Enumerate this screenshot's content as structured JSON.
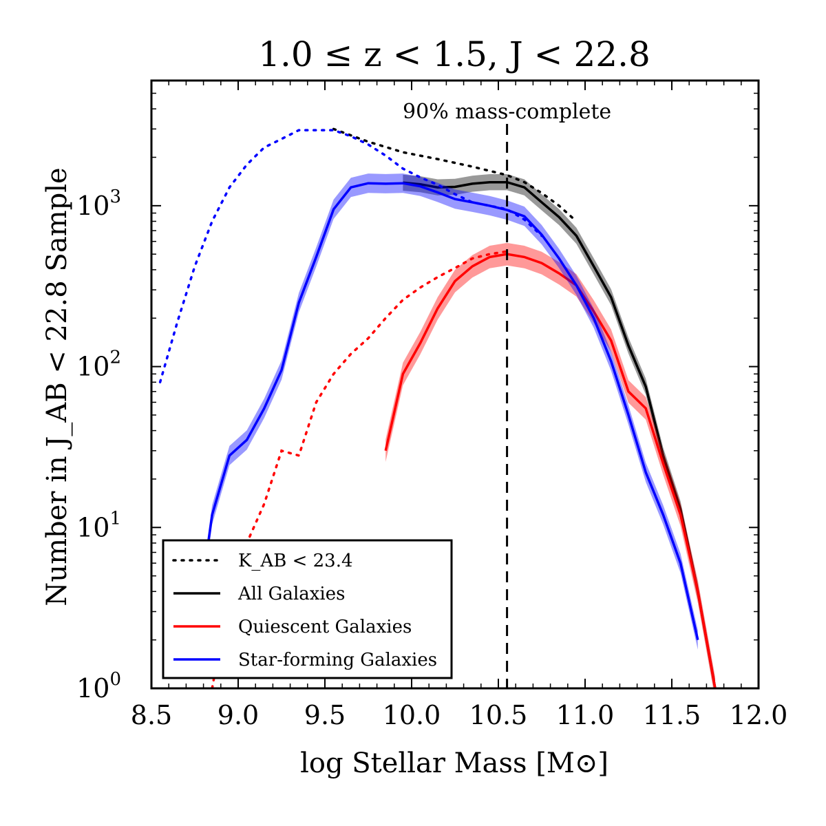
{
  "chart_data": {
    "type": "line",
    "title": "1.0 ≤ z < 1.5, J < 22.8",
    "xlabel": "log Stellar Mass [M⊙]",
    "ylabel": "Number in J_AB < 22.8 Sample",
    "xlim": [
      8.5,
      12.0
    ],
    "ylim": [
      1,
      6000
    ],
    "yscale": "log",
    "grid": false,
    "legend_position": "bottom-left",
    "xticks": [
      "8.5",
      "9.0",
      "9.5",
      "10.0",
      "10.5",
      "11.0",
      "11.5",
      "12.0"
    ],
    "yticks": [
      {
        "base": "10",
        "exp": "0",
        "value": 1
      },
      {
        "base": "10",
        "exp": "1",
        "value": 10
      },
      {
        "base": "10",
        "exp": "2",
        "value": 100
      },
      {
        "base": "10",
        "exp": "3",
        "value": 1000
      }
    ],
    "annotation": {
      "text": "90% mass-complete",
      "x": 10.55
    },
    "series": [
      {
        "name": "K_AB < 23.4",
        "legend_label": "K_AB < 23.4",
        "style": "dotted",
        "color": "#000000",
        "points": [
          [
            9.55,
            3000
          ],
          [
            9.75,
            2500
          ],
          [
            9.95,
            2150
          ],
          [
            10.15,
            1950
          ],
          [
            10.35,
            1750
          ],
          [
            10.55,
            1550
          ],
          [
            10.65,
            1400
          ],
          [
            10.75,
            1200
          ],
          [
            10.85,
            1000
          ],
          [
            10.95,
            800
          ]
        ]
      },
      {
        "name": "All Galaxies",
        "legend_label": "All Galaxies",
        "style": "solid",
        "color": "#000000",
        "band": 0.05,
        "points": [
          [
            9.95,
            1390
          ],
          [
            10.05,
            1360
          ],
          [
            10.15,
            1300
          ],
          [
            10.25,
            1310
          ],
          [
            10.35,
            1370
          ],
          [
            10.45,
            1400
          ],
          [
            10.55,
            1400
          ],
          [
            10.65,
            1300
          ],
          [
            10.75,
            1050
          ],
          [
            10.85,
            850
          ],
          [
            10.95,
            650
          ],
          [
            11.05,
            420
          ],
          [
            11.15,
            270
          ],
          [
            11.25,
            135
          ],
          [
            11.35,
            75
          ],
          [
            11.45,
            28
          ],
          [
            11.55,
            13
          ],
          [
            11.65,
            4
          ],
          [
            11.75,
            1
          ]
        ]
      },
      {
        "name": "Quiescent Galaxies",
        "legend_label": "Quiescent Galaxies",
        "style": "solid",
        "color": "#ff0000",
        "band": 0.07,
        "points": [
          [
            9.85,
            30
          ],
          [
            9.95,
            90
          ],
          [
            10.05,
            140
          ],
          [
            10.15,
            230
          ],
          [
            10.25,
            340
          ],
          [
            10.35,
            420
          ],
          [
            10.45,
            480
          ],
          [
            10.55,
            500
          ],
          [
            10.65,
            480
          ],
          [
            10.75,
            440
          ],
          [
            10.85,
            380
          ],
          [
            10.95,
            320
          ],
          [
            11.05,
            220
          ],
          [
            11.15,
            145
          ],
          [
            11.25,
            70
          ],
          [
            11.35,
            55
          ],
          [
            11.45,
            25
          ],
          [
            11.55,
            12
          ],
          [
            11.65,
            4
          ],
          [
            11.75,
            1
          ]
        ]
      },
      {
        "name": "Star-forming Galaxies",
        "legend_label": "Star-forming Galaxies",
        "style": "solid",
        "color": "#0000ff",
        "band": 0.06,
        "points": [
          [
            8.75,
            2
          ],
          [
            8.85,
            12
          ],
          [
            8.95,
            28
          ],
          [
            9.05,
            35
          ],
          [
            9.15,
            55
          ],
          [
            9.25,
            95
          ],
          [
            9.35,
            250
          ],
          [
            9.45,
            480
          ],
          [
            9.55,
            950
          ],
          [
            9.65,
            1300
          ],
          [
            9.75,
            1380
          ],
          [
            9.85,
            1370
          ],
          [
            9.95,
            1380
          ],
          [
            10.05,
            1320
          ],
          [
            10.15,
            1210
          ],
          [
            10.25,
            1100
          ],
          [
            10.35,
            1050
          ],
          [
            10.45,
            1000
          ],
          [
            10.55,
            940
          ],
          [
            10.65,
            860
          ],
          [
            10.75,
            660
          ],
          [
            10.85,
            470
          ],
          [
            10.95,
            320
          ],
          [
            11.05,
            200
          ],
          [
            11.15,
            108
          ],
          [
            11.25,
            50
          ],
          [
            11.35,
            22
          ],
          [
            11.45,
            12
          ],
          [
            11.55,
            6
          ],
          [
            11.65,
            2
          ]
        ]
      },
      {
        "name": "K_AB < 23.4 (star-forming)",
        "style": "dotted",
        "color": "#0000ff",
        "points": [
          [
            8.55,
            80
          ],
          [
            8.65,
            190
          ],
          [
            8.75,
            420
          ],
          [
            8.85,
            800
          ],
          [
            8.95,
            1300
          ],
          [
            9.05,
            1800
          ],
          [
            9.15,
            2300
          ],
          [
            9.25,
            2600
          ],
          [
            9.35,
            2950
          ],
          [
            9.45,
            2950
          ],
          [
            9.55,
            2950
          ],
          [
            9.65,
            2700
          ],
          [
            9.75,
            2400
          ],
          [
            9.85,
            2050
          ],
          [
            9.95,
            1700
          ],
          [
            10.05,
            1500
          ],
          [
            10.15,
            1350
          ],
          [
            10.25,
            1180
          ],
          [
            10.35,
            1050
          ],
          [
            10.45,
            1000
          ],
          [
            10.55,
            950
          ],
          [
            10.65,
            820
          ],
          [
            10.75,
            650
          ]
        ]
      },
      {
        "name": "K_AB < 23.4 (quiescent)",
        "style": "dotted",
        "color": "#ff0000",
        "points": [
          [
            8.85,
            1
          ],
          [
            8.95,
            4
          ],
          [
            9.05,
            8
          ],
          [
            9.15,
            14
          ],
          [
            9.25,
            30
          ],
          [
            9.35,
            28
          ],
          [
            9.45,
            60
          ],
          [
            9.55,
            90
          ],
          [
            9.65,
            120
          ],
          [
            9.75,
            150
          ],
          [
            9.85,
            200
          ],
          [
            9.95,
            260
          ],
          [
            10.05,
            310
          ],
          [
            10.15,
            360
          ],
          [
            10.25,
            410
          ],
          [
            10.35,
            470
          ],
          [
            10.45,
            500
          ],
          [
            10.55,
            520
          ]
        ]
      }
    ]
  }
}
